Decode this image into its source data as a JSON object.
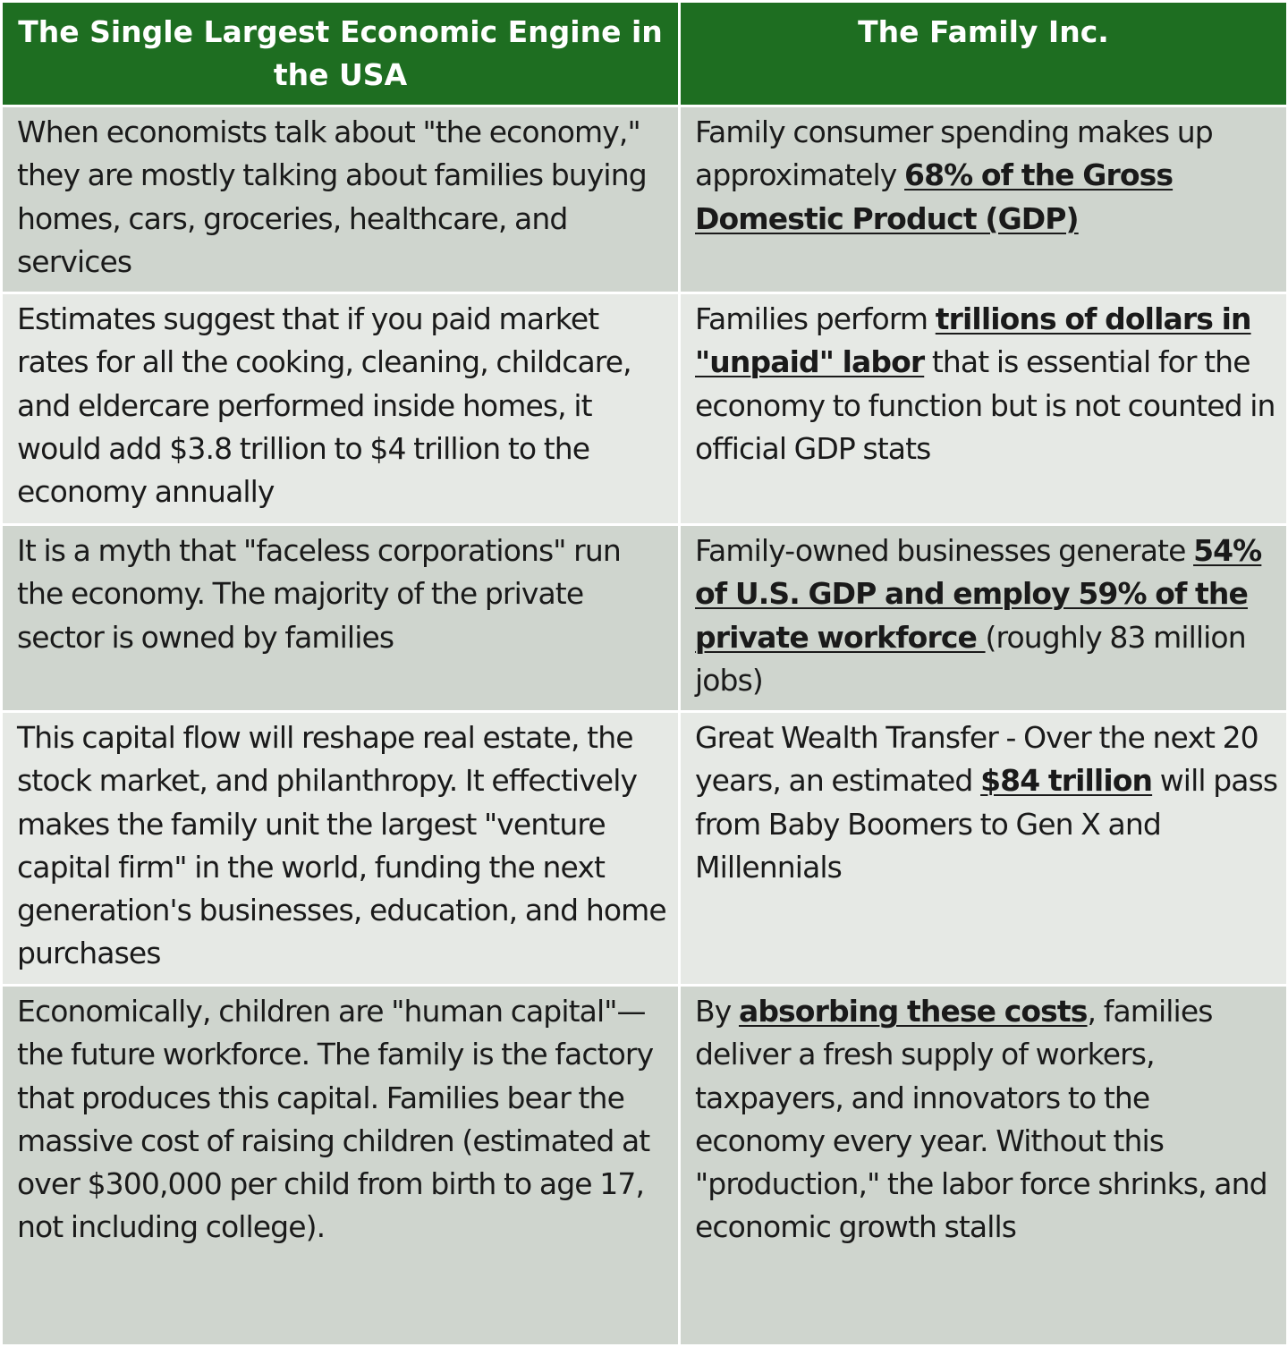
{
  "table": {
    "headers": [
      "The Single Largest Economic Engine in the USA",
      "The Family Inc."
    ],
    "rows": [
      {
        "left": "When economists talk about \"the economy,\" they are mostly talking about families buying homes, cars, groceries, healthcare, and services",
        "right_before": "Family consumer spending makes up approximately ",
        "right_highlight": "68% of the Gross Domestic Product (GDP)",
        "right_after": ""
      },
      {
        "left": "Estimates suggest that if you paid market rates for all the cooking, cleaning, childcare, and eldercare performed inside homes, it would add $3.8 trillion to $4 trillion to the economy annually",
        "right_before": "Families perform ",
        "right_highlight": "trillions of dollars in \"unpaid\" labor",
        "right_after": " that is essential for the economy to function but is not counted in official GDP stats"
      },
      {
        "left": "It is a myth that \"faceless corporations\" run the economy. The majority of the private sector is owned by families",
        "right_before": "Family-owned businesses generate ",
        "right_highlight": "54% of U.S. GDP and employ 59% of the private workforce ",
        "right_after": "(roughly 83 million jobs)"
      },
      {
        "left": "This capital flow will reshape real estate, the stock market, and philanthropy. It effectively makes the family unit the largest \"venture capital firm\" in the world, funding the next generation's businesses, education, and home purchases",
        "right_before": "Great Wealth Transfer - Over the next 20 years, an estimated ",
        "right_highlight": "$84 trillion",
        "right_after": " will pass from Baby Boomers to Gen X and Millennials"
      },
      {
        "left": "Economically, children are \"human capital\"—the future workforce. The family is the factory that produces this capital. Families bear the massive cost of raising children (estimated at over $300,000 per child from birth to age 17, not including college).",
        "right_before": "By ",
        "right_highlight": "absorbing these costs",
        "right_after": ", families deliver a fresh supply of workers, taxpayers, and innovators to the economy every year. Without this \"production,\" the labor force shrinks, and economic growth stalls"
      }
    ]
  },
  "colors": {
    "header_bg": "#1e6e21",
    "header_text": "#ffffff",
    "row_dark": "#cfd5ce",
    "row_light": "#e6e9e5",
    "body_text": "#1a1a1a"
  }
}
